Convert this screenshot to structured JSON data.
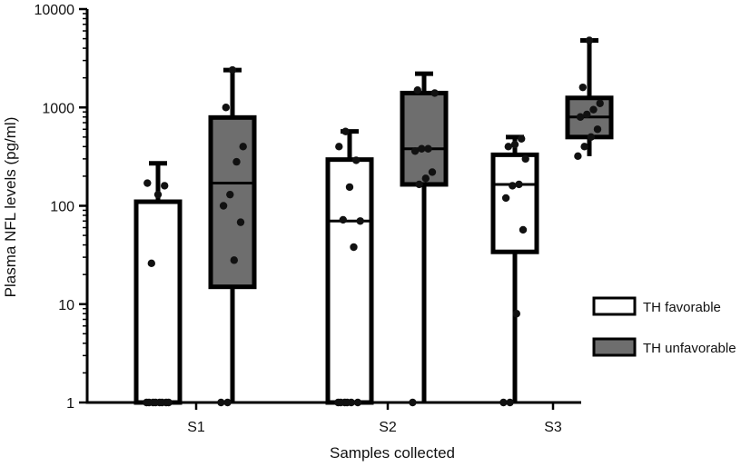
{
  "chart_data": {
    "type": "box",
    "ylabel": "Plasma NFL levels (pg/ml)",
    "xlabel": "Samples collected",
    "y_scale": "log",
    "ylim": [
      1,
      10000
    ],
    "yticks": [
      "1",
      "10",
      "100",
      "1000",
      "10000"
    ],
    "categories": [
      "S1",
      "S2",
      "S3"
    ],
    "legend_position": "right",
    "series": [
      {
        "name": "TH favorable",
        "color": "#ffffff",
        "boxes": [
          {
            "category": "S1",
            "min": 1,
            "q1": 1,
            "median": 1,
            "q3": 110,
            "max": 270,
            "points": [
              1,
              1,
              1,
              1,
              1,
              1,
              1,
              1,
              26,
              130,
              160,
              170
            ]
          },
          {
            "category": "S2",
            "min": 1,
            "q1": 1,
            "median": 70,
            "q3": 295,
            "max": 570,
            "points": [
              1,
              1,
              1,
              1,
              1,
              1,
              38,
              70,
              72,
              155,
              290,
              400,
              570
            ]
          },
          {
            "category": "S3",
            "min": 1,
            "q1": 34,
            "median": 165,
            "q3": 330,
            "max": 500,
            "points": [
              1,
              1,
              8,
              57,
              120,
              160,
              165,
              300,
              400,
              420,
              480
            ]
          }
        ]
      },
      {
        "name": "TH unfavorable",
        "color": "#6e6e6e",
        "boxes": [
          {
            "category": "S1",
            "min": 1,
            "q1": 15,
            "median": 170,
            "q3": 790,
            "max": 2400,
            "points": [
              1,
              1,
              28,
              68,
              100,
              130,
              280,
              400,
              1000,
              2400
            ]
          },
          {
            "category": "S2",
            "min": 1,
            "q1": 165,
            "median": 380,
            "q3": 1400,
            "max": 2200,
            "points": [
              1,
              165,
              190,
              220,
              360,
              380,
              380,
              1400,
              1500
            ]
          },
          {
            "category": "S3",
            "min": 320,
            "q1": 500,
            "median": 800,
            "q3": 1250,
            "max": 4800,
            "points": [
              320,
              400,
              500,
              600,
              800,
              850,
              950,
              1100,
              1600,
              4800
            ]
          }
        ]
      }
    ]
  }
}
